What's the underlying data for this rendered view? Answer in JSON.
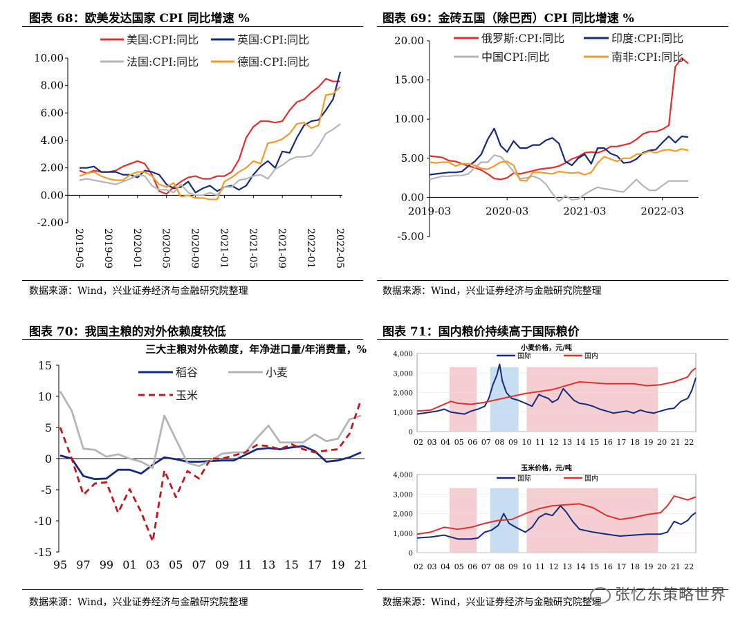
{
  "watermark": "张忆东策略世界",
  "colors": {
    "red": "#e0302b",
    "navy": "#152a7c",
    "gray": "#b5b5b5",
    "orange": "#f39a2f",
    "darkred": "#c0171c",
    "shadeRed": "#f2c2c6",
    "shadeBlue": "#b9d4ee"
  },
  "panels": [
    {
      "title": "图表 68：欧美发达国家 CPI 同比增速 %",
      "source": "数据来源：Wind，兴业证券经济与金融研究院整理"
    },
    {
      "title": "图表 69：金砖五国（除巴西）CPI 同比增速 %",
      "source": "数据来源：Wind，兴业证券经济与金融研究院整理"
    },
    {
      "title": "图表 70：我国主粮的对外依赖度较低",
      "source": "数据来源：Wind，兴业证券经济与金融研究院整理"
    },
    {
      "title": "图表 71：国内粮价持续高于国际粮价",
      "source": "数据来源：Wind，兴业证券经济与金融研究院整理"
    }
  ],
  "chart_data": [
    {
      "type": "line",
      "title": "欧美发达国家 CPI 同比增速 %",
      "ylim": [
        -2,
        10
      ],
      "yticks": [
        "-2.00",
        "0.00",
        "2.00",
        "4.00",
        "6.00",
        "8.00",
        "10.00"
      ],
      "xticks": [
        "2019-05",
        "2019-09",
        "2020-01",
        "2020-05",
        "2020-09",
        "2021-01",
        "2021-05",
        "2021-09",
        "2022-01",
        "2022-05"
      ],
      "x_start": "2019-05",
      "x_months": 37,
      "series": [
        {
          "name": "美国:CPI:同比",
          "color": "red",
          "values": [
            1.8,
            1.6,
            1.8,
            1.7,
            1.7,
            1.8,
            2.1,
            2.3,
            2.5,
            2.3,
            1.5,
            0.3,
            0.1,
            0.6,
            1.0,
            1.3,
            1.4,
            1.2,
            1.2,
            1.4,
            1.4,
            1.7,
            2.6,
            4.2,
            5.0,
            5.4,
            5.4,
            5.3,
            5.4,
            6.2,
            6.8,
            7.0,
            7.5,
            7.9,
            8.5,
            8.3,
            8.3
          ]
        },
        {
          "name": "英国:CPI:同比",
          "color": "navy",
          "values": [
            2.0,
            2.0,
            2.1,
            1.7,
            1.7,
            1.7,
            1.5,
            1.5,
            1.3,
            1.8,
            1.7,
            1.5,
            0.8,
            0.5,
            0.6,
            1.0,
            0.2,
            0.5,
            0.7,
            0.3,
            0.6,
            0.7,
            0.4,
            0.7,
            1.5,
            2.1,
            2.5,
            2.0,
            3.2,
            3.1,
            4.2,
            5.1,
            5.4,
            5.5,
            6.2,
            7.0,
            9.0
          ]
        },
        {
          "name": "法国:CPI:同比",
          "color": "gray",
          "values": [
            1.1,
            1.2,
            1.1,
            1.0,
            0.9,
            0.8,
            1.0,
            1.2,
            1.5,
            1.4,
            0.7,
            0.4,
            0.4,
            0.2,
            0.8,
            0.2,
            0.0,
            0.0,
            0.2,
            0.0,
            0.6,
            0.6,
            1.1,
            1.2,
            1.4,
            1.5,
            1.2,
            1.9,
            2.2,
            2.6,
            2.8,
            2.8,
            2.9,
            3.6,
            4.5,
            4.8,
            5.2
          ]
        },
        {
          "name": "德国:CPI:同比",
          "color": "orange",
          "values": [
            1.4,
            1.6,
            1.7,
            1.4,
            1.2,
            1.1,
            1.1,
            1.5,
            1.7,
            1.7,
            1.4,
            0.8,
            0.6,
            0.9,
            -0.1,
            0.0,
            -0.2,
            -0.2,
            -0.3,
            -0.3,
            1.0,
            1.3,
            1.7,
            2.0,
            2.5,
            2.3,
            3.8,
            3.9,
            4.1,
            4.5,
            5.2,
            5.3,
            4.9,
            5.1,
            7.3,
            7.4,
            7.9
          ]
        }
      ]
    },
    {
      "type": "line",
      "title": "金砖五国（除巴西）CPI 同比增速 %",
      "ylim": [
        -5,
        20
      ],
      "yticks": [
        "-5.00",
        "0.00",
        "5.00",
        "10.00",
        "15.00",
        "20.00"
      ],
      "xticks": [
        "2019-03",
        "2020-03",
        "2021-03",
        "2022-03"
      ],
      "x_start": "2019-03",
      "x_months": 41,
      "series": [
        {
          "name": "俄罗斯:CPI:同比",
          "color": "red",
          "values": [
            5.3,
            5.2,
            5.1,
            4.7,
            4.6,
            4.3,
            4.0,
            3.8,
            3.5,
            3.0,
            2.4,
            2.3,
            2.5,
            3.1,
            3.0,
            3.2,
            3.4,
            3.6,
            3.7,
            3.8,
            4.0,
            4.4,
            4.9,
            5.2,
            5.7,
            5.8,
            5.7,
            6.0,
            6.5,
            6.5,
            6.7,
            6.9,
            7.4,
            8.1,
            8.4,
            8.4,
            8.7,
            9.2,
            16.7,
            17.8,
            17.1
          ]
        },
        {
          "name": "印度:CPI:同比",
          "color": "navy",
          "values": [
            2.9,
            3.0,
            3.1,
            3.2,
            3.2,
            3.3,
            4.0,
            4.6,
            5.5,
            7.4,
            8.8,
            6.6,
            5.8,
            7.2,
            6.3,
            6.3,
            6.7,
            6.7,
            7.3,
            7.6,
            6.9,
            4.6,
            4.1,
            5.0,
            5.5,
            4.3,
            6.3,
            6.3,
            5.6,
            5.3,
            4.4,
            4.5,
            4.9,
            5.7,
            6.0,
            6.1,
            7.0,
            7.8,
            7.0,
            7.8,
            7.7
          ]
        },
        {
          "name": "中国CPI:同比",
          "color": "gray",
          "values": [
            2.3,
            2.5,
            2.7,
            2.7,
            2.8,
            2.8,
            3.0,
            3.8,
            4.5,
            4.5,
            5.4,
            5.2,
            4.3,
            3.3,
            2.4,
            2.5,
            2.7,
            2.4,
            1.7,
            0.5,
            -0.5,
            0.2,
            -0.3,
            -0.2,
            0.4,
            0.9,
            1.3,
            1.1,
            1.0,
            0.8,
            0.7,
            1.5,
            2.3,
            1.5,
            0.9,
            0.9,
            1.5,
            2.1,
            2.1,
            2.1,
            2.1
          ]
        },
        {
          "name": "南非:CPI:同比",
          "color": "orange",
          "values": [
            4.5,
            4.4,
            4.5,
            4.5,
            4.0,
            4.3,
            4.3,
            4.1,
            3.7,
            3.6,
            4.0,
            4.5,
            4.6,
            4.1,
            2.2,
            2.1,
            3.2,
            3.2,
            3.1,
            3.0,
            3.3,
            3.2,
            3.1,
            3.2,
            2.9,
            3.2,
            4.4,
            5.2,
            4.9,
            4.6,
            5.0,
            5.0,
            5.5,
            5.6,
            5.9,
            5.7,
            6.0,
            6.1,
            5.9,
            6.2,
            6.0
          ]
        }
      ]
    },
    {
      "type": "line",
      "title": "三大主粮对外依赖度，年净进口量/年消费量，%",
      "ylim": [
        -15,
        15
      ],
      "yticks": [
        "-15",
        "-10",
        "-5",
        "0",
        "5",
        "10",
        "15"
      ],
      "xticks": [
        "95",
        "97",
        "99",
        "01",
        "03",
        "05",
        "07",
        "09",
        "11",
        "13",
        "15",
        "17",
        "19",
        "21"
      ],
      "x": [
        1995,
        1996,
        1997,
        1998,
        1999,
        2000,
        2001,
        2002,
        2003,
        2004,
        2005,
        2006,
        2007,
        2008,
        2009,
        2010,
        2011,
        2012,
        2013,
        2014,
        2015,
        2016,
        2017,
        2018,
        2019,
        2020,
        2021
      ],
      "series": [
        {
          "name": "稻谷",
          "color": "navy",
          "style": "solid",
          "values": [
            0.5,
            0.0,
            -2.8,
            -3.3,
            -3.2,
            -1.8,
            -1.8,
            -2.4,
            -1.0,
            0.2,
            -0.1,
            -0.5,
            -0.5,
            -0.4,
            -0.3,
            -0.3,
            0.6,
            1.5,
            1.7,
            1.5,
            1.8,
            2.0,
            1.2,
            -0.5,
            -0.3,
            0.2,
            1.0
          ]
        },
        {
          "name": "小麦",
          "color": "gray",
          "style": "solid",
          "values": [
            10.8,
            7.7,
            1.6,
            1.4,
            0.3,
            0.7,
            0.0,
            -0.5,
            -1.5,
            6.9,
            3.1,
            -0.7,
            -1.2,
            -0.3,
            0.8,
            1.0,
            1.0,
            3.3,
            5.3,
            2.6,
            2.6,
            2.6,
            3.9,
            2.8,
            3.2,
            6.3,
            6.9
          ]
        },
        {
          "name": "玉米",
          "color": "darkred",
          "style": "dashed",
          "values": [
            5.0,
            0.0,
            -5.8,
            -4.0,
            -3.8,
            -8.7,
            -4.9,
            -8.6,
            -13.3,
            -1.9,
            -6.2,
            -2.0,
            -3.2,
            0.0,
            0.0,
            0.5,
            1.0,
            2.2,
            2.0,
            1.5,
            2.3,
            1.5,
            1.0,
            1.3,
            1.5,
            4.0,
            9.5
          ]
        }
      ]
    },
    {
      "type": "line",
      "title": "国内粮价持续高于国际粮价",
      "subcharts": [
        {
          "title": "小麦价格，元/吨",
          "ylim": [
            0,
            4000
          ],
          "yticks": [
            "0",
            "1,000",
            "2,000",
            "3,000",
            "4,000"
          ],
          "xticks": [
            "02",
            "03",
            "04",
            "05",
            "06",
            "07",
            "08",
            "09",
            "10",
            "11",
            "12",
            "13",
            "14",
            "15",
            "16",
            "17",
            "18",
            "19",
            "20",
            "21",
            "22"
          ],
          "x_range": [
            2002,
            2022.6
          ],
          "shaded_periods": [
            {
              "start": 2004.4,
              "end": 2006.4,
              "color": "shadeRed"
            },
            {
              "start": 2007.4,
              "end": 2009.5,
              "color": "shadeBlue"
            },
            {
              "start": 2010.1,
              "end": 2019.8,
              "color": "shadeRed"
            }
          ],
          "series": [
            {
              "name": "国际",
              "color": "navy",
              "x": [
                2002,
                2002.5,
                2003,
                2003.5,
                2004,
                2004.5,
                2005,
                2005.5,
                2006,
                2006.5,
                2007,
                2007.3,
                2007.6,
                2007.9,
                2008.1,
                2008.3,
                2008.6,
                2009,
                2009.5,
                2010,
                2010.5,
                2011,
                2011.3,
                2011.7,
                2012,
                2012.4,
                2012.8,
                2013.2,
                2013.6,
                2014,
                2014.5,
                2015,
                2015.5,
                2016,
                2016.5,
                2017,
                2017.5,
                2018,
                2018.5,
                2019,
                2019.5,
                2020,
                2020.5,
                2021,
                2021.5,
                2022,
                2022.3,
                2022.6
              ],
              "values": [
                900,
                950,
                1000,
                1050,
                1150,
                1000,
                950,
                900,
                1050,
                1150,
                1300,
                1700,
                2400,
                2900,
                3450,
                2600,
                2000,
                1700,
                1600,
                1450,
                1300,
                1900,
                1800,
                1700,
                1500,
                1650,
                2200,
                1900,
                1600,
                1450,
                1400,
                1300,
                1150,
                1050,
                950,
                1000,
                1050,
                950,
                1100,
                1000,
                950,
                1050,
                1150,
                1200,
                1550,
                1700,
                2100,
                2750
              ]
            },
            {
              "name": "国内",
              "color": "red",
              "x": [
                2002,
                2003,
                2004,
                2004.5,
                2005,
                2006,
                2007,
                2008,
                2009,
                2010,
                2011,
                2012,
                2013,
                2014,
                2015,
                2016,
                2017,
                2018,
                2019,
                2020,
                2021,
                2022,
                2022.3,
                2022.6
              ],
              "values": [
                1050,
                1100,
                1400,
                1550,
                1450,
                1400,
                1500,
                1650,
                1800,
                1950,
                2050,
                2150,
                2350,
                2550,
                2500,
                2450,
                2450,
                2450,
                2350,
                2400,
                2550,
                2800,
                3100,
                3250
              ]
            }
          ]
        },
        {
          "title": "玉米价格，元/吨",
          "ylim": [
            0,
            4000
          ],
          "yticks": [
            "0",
            "1,000",
            "2,000",
            "3,000",
            "4,000"
          ],
          "xticks": [
            "02",
            "03",
            "04",
            "05",
            "06",
            "07",
            "08",
            "09",
            "10",
            "11",
            "12",
            "13",
            "14",
            "15",
            "16",
            "17",
            "18",
            "19",
            "20",
            "21",
            "22"
          ],
          "x_range": [
            2002,
            2022.6
          ],
          "shaded_periods": [
            {
              "start": 2004.4,
              "end": 2006.4,
              "color": "shadeRed"
            },
            {
              "start": 2007.4,
              "end": 2009.5,
              "color": "shadeBlue"
            },
            {
              "start": 2010.1,
              "end": 2019.8,
              "color": "shadeRed"
            }
          ],
          "series": [
            {
              "name": "国际",
              "color": "navy",
              "x": [
                2002,
                2003,
                2004,
                2004.5,
                2005,
                2006,
                2006.5,
                2007,
                2007.5,
                2008,
                2008.4,
                2008.8,
                2009.3,
                2010,
                2010.5,
                2011,
                2011.5,
                2012,
                2012.6,
                2013,
                2013.5,
                2014,
                2015,
                2016,
                2017,
                2018,
                2019,
                2020,
                2020.5,
                2021,
                2021.5,
                2022,
                2022.3,
                2022.6
              ],
              "values": [
                750,
                800,
                900,
                800,
                700,
                700,
                750,
                1050,
                1150,
                1400,
                2000,
                1500,
                1300,
                1050,
                1300,
                1800,
                2000,
                1900,
                2400,
                2100,
                1600,
                1200,
                1050,
                950,
                850,
                900,
                950,
                950,
                1050,
                1600,
                1450,
                1650,
                1900,
                2050
              ]
            },
            {
              "name": "国内",
              "color": "red",
              "x": [
                2002,
                2003,
                2004,
                2005,
                2006,
                2007,
                2008,
                2009,
                2010,
                2011,
                2012,
                2013,
                2014,
                2015,
                2016,
                2017,
                2018,
                2019,
                2020,
                2020.5,
                2021,
                2021.5,
                2022,
                2022.6
              ],
              "values": [
                950,
                1050,
                1300,
                1200,
                1300,
                1500,
                1650,
                1700,
                2000,
                2250,
                2400,
                2450,
                2500,
                2300,
                1900,
                1700,
                1800,
                1950,
                2050,
                2400,
                2900,
                2800,
                2700,
                2850
              ]
            }
          ]
        }
      ]
    }
  ]
}
